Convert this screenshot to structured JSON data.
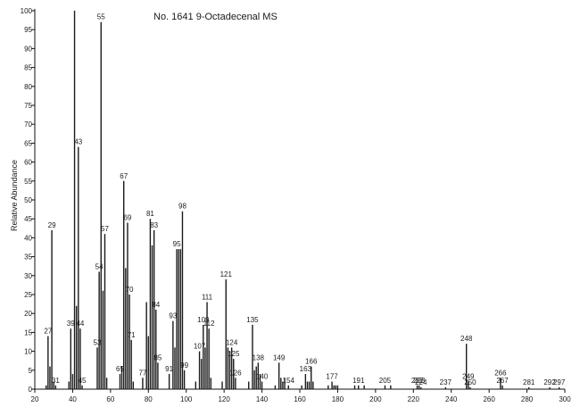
{
  "chart_data": {
    "type": "bar",
    "title": "No. 1641 9-Octadecenal MS",
    "xlabel": "",
    "ylabel": "Relative Abundance",
    "xlim": [
      20,
      300
    ],
    "ylim": [
      0,
      100
    ],
    "grid": false,
    "legend": "none",
    "x_ticks": [
      20,
      40,
      60,
      80,
      100,
      120,
      140,
      160,
      180,
      200,
      220,
      240,
      260,
      280,
      300
    ],
    "y_ticks": [
      0,
      5,
      10,
      15,
      20,
      25,
      30,
      35,
      40,
      45,
      50,
      55,
      60,
      65,
      70,
      75,
      80,
      85,
      90,
      95,
      100
    ],
    "peaks": [
      {
        "mz": 26,
        "intensity": 1
      },
      {
        "mz": 27,
        "intensity": 14,
        "label": "27"
      },
      {
        "mz": 28,
        "intensity": 6
      },
      {
        "mz": 29,
        "intensity": 42,
        "label": "29"
      },
      {
        "mz": 30,
        "intensity": 2
      },
      {
        "mz": 31,
        "intensity": 1,
        "label": "31"
      },
      {
        "mz": 38,
        "intensity": 2
      },
      {
        "mz": 39,
        "intensity": 16,
        "label": "39"
      },
      {
        "mz": 40,
        "intensity": 4
      },
      {
        "mz": 41,
        "intensity": 100
      },
      {
        "mz": 42,
        "intensity": 22
      },
      {
        "mz": 43,
        "intensity": 64,
        "label": "43"
      },
      {
        "mz": 44,
        "intensity": 16,
        "label": "44"
      },
      {
        "mz": 45,
        "intensity": 1,
        "label": "45"
      },
      {
        "mz": 53,
        "intensity": 11,
        "label": "53"
      },
      {
        "mz": 54,
        "intensity": 31,
        "label": "54"
      },
      {
        "mz": 55,
        "intensity": 97,
        "label": "55"
      },
      {
        "mz": 56,
        "intensity": 26
      },
      {
        "mz": 57,
        "intensity": 41,
        "label": "57"
      },
      {
        "mz": 58,
        "intensity": 3
      },
      {
        "mz": 65,
        "intensity": 4,
        "label": "65"
      },
      {
        "mz": 66,
        "intensity": 6
      },
      {
        "mz": 67,
        "intensity": 55,
        "label": "67"
      },
      {
        "mz": 68,
        "intensity": 32
      },
      {
        "mz": 69,
        "intensity": 44,
        "label": "69"
      },
      {
        "mz": 70,
        "intensity": 25,
        "label": "70"
      },
      {
        "mz": 71,
        "intensity": 13,
        "label": "71"
      },
      {
        "mz": 72,
        "intensity": 2
      },
      {
        "mz": 77,
        "intensity": 3,
        "label": "77"
      },
      {
        "mz": 79,
        "intensity": 23
      },
      {
        "mz": 80,
        "intensity": 14
      },
      {
        "mz": 81,
        "intensity": 45,
        "label": "81"
      },
      {
        "mz": 82,
        "intensity": 38
      },
      {
        "mz": 83,
        "intensity": 42,
        "label": "83"
      },
      {
        "mz": 84,
        "intensity": 21,
        "label": "84"
      },
      {
        "mz": 85,
        "intensity": 7,
        "label": "85"
      },
      {
        "mz": 91,
        "intensity": 4,
        "label": "91"
      },
      {
        "mz": 93,
        "intensity": 18,
        "label": "93"
      },
      {
        "mz": 94,
        "intensity": 11
      },
      {
        "mz": 95,
        "intensity": 37,
        "label": "95"
      },
      {
        "mz": 96,
        "intensity": 37
      },
      {
        "mz": 97,
        "intensity": 37
      },
      {
        "mz": 98,
        "intensity": 47,
        "label": "98"
      },
      {
        "mz": 99,
        "intensity": 5,
        "label": "99"
      },
      {
        "mz": 105,
        "intensity": 2
      },
      {
        "mz": 107,
        "intensity": 10,
        "label": "107"
      },
      {
        "mz": 108,
        "intensity": 8
      },
      {
        "mz": 109,
        "intensity": 17,
        "label": "109"
      },
      {
        "mz": 110,
        "intensity": 11
      },
      {
        "mz": 111,
        "intensity": 23,
        "label": "111"
      },
      {
        "mz": 112,
        "intensity": 16,
        "label": "112"
      },
      {
        "mz": 113,
        "intensity": 3
      },
      {
        "mz": 119,
        "intensity": 2
      },
      {
        "mz": 121,
        "intensity": 29,
        "label": "121"
      },
      {
        "mz": 122,
        "intensity": 11
      },
      {
        "mz": 123,
        "intensity": 10
      },
      {
        "mz": 124,
        "intensity": 11,
        "label": "124"
      },
      {
        "mz": 125,
        "intensity": 8,
        "label": "125"
      },
      {
        "mz": 126,
        "intensity": 3,
        "label": "126"
      },
      {
        "mz": 133,
        "intensity": 2
      },
      {
        "mz": 135,
        "intensity": 17,
        "label": "135"
      },
      {
        "mz": 136,
        "intensity": 5
      },
      {
        "mz": 137,
        "intensity": 6
      },
      {
        "mz": 138,
        "intensity": 7,
        "label": "138"
      },
      {
        "mz": 139,
        "intensity": 4
      },
      {
        "mz": 140,
        "intensity": 2,
        "label": "140"
      },
      {
        "mz": 147,
        "intensity": 1
      },
      {
        "mz": 149,
        "intensity": 7,
        "label": "149"
      },
      {
        "mz": 150,
        "intensity": 3
      },
      {
        "mz": 151,
        "intensity": 2
      },
      {
        "mz": 152,
        "intensity": 3
      },
      {
        "mz": 154,
        "intensity": 1,
        "label": "154"
      },
      {
        "mz": 161,
        "intensity": 1
      },
      {
        "mz": 163,
        "intensity": 4,
        "label": "163"
      },
      {
        "mz": 164,
        "intensity": 2
      },
      {
        "mz": 165,
        "intensity": 2
      },
      {
        "mz": 166,
        "intensity": 6,
        "label": "166"
      },
      {
        "mz": 167,
        "intensity": 2
      },
      {
        "mz": 175,
        "intensity": 1
      },
      {
        "mz": 177,
        "intensity": 2,
        "label": "177"
      },
      {
        "mz": 178,
        "intensity": 1
      },
      {
        "mz": 179,
        "intensity": 1
      },
      {
        "mz": 180,
        "intensity": 1
      },
      {
        "mz": 189,
        "intensity": 1
      },
      {
        "mz": 191,
        "intensity": 1,
        "label": "191"
      },
      {
        "mz": 194,
        "intensity": 1
      },
      {
        "mz": 205,
        "intensity": 1,
        "label": "205"
      },
      {
        "mz": 208,
        "intensity": 1
      },
      {
        "mz": 222,
        "intensity": 1,
        "label": "222"
      },
      {
        "mz": 223,
        "intensity": 1,
        "label": "223"
      },
      {
        "mz": 224,
        "intensity": 0.5,
        "label": "224"
      },
      {
        "mz": 237,
        "intensity": 0.5,
        "label": "237"
      },
      {
        "mz": 248,
        "intensity": 12,
        "label": "248"
      },
      {
        "mz": 249,
        "intensity": 2,
        "label": "249"
      },
      {
        "mz": 250,
        "intensity": 0.5,
        "label": "250"
      },
      {
        "mz": 266,
        "intensity": 3,
        "label": "266"
      },
      {
        "mz": 267,
        "intensity": 1,
        "label": "267"
      },
      {
        "mz": 281,
        "intensity": 0.5,
        "label": "281"
      },
      {
        "mz": 292,
        "intensity": 0.5,
        "label": "292"
      },
      {
        "mz": 297,
        "intensity": 0.5,
        "label": "297"
      }
    ]
  }
}
